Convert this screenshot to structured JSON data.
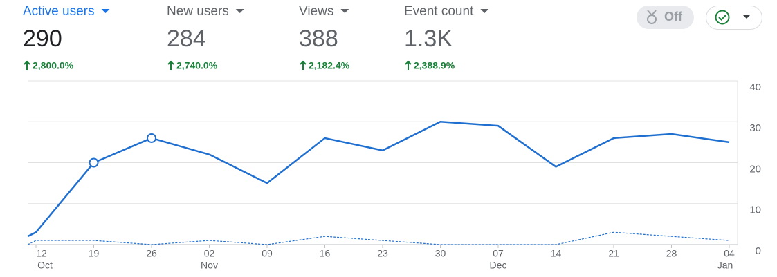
{
  "metrics": [
    {
      "name": "Active users",
      "value": "290",
      "change": "2,800.0%"
    },
    {
      "name": "New users",
      "value": "284",
      "change": "2,740.0%"
    },
    {
      "name": "Views",
      "value": "388",
      "change": "2,182.4%"
    },
    {
      "name": "Event count",
      "value": "1.3K",
      "change": "2,388.9%"
    }
  ],
  "toggle": "Off",
  "chart_data": {
    "type": "line",
    "categories": [
      null,
      "12",
      "19",
      "26",
      "02",
      "09",
      "16",
      "23",
      "30",
      "07",
      "14",
      "21",
      "28",
      "04"
    ],
    "x_sublabels": [
      null,
      "Oct",
      null,
      null,
      "Nov",
      null,
      null,
      null,
      null,
      "Dec",
      null,
      null,
      null,
      "Jan"
    ],
    "series": [
      {
        "color": "#1f6fd1",
        "values": [
          2,
          3,
          20,
          26,
          22,
          15,
          26,
          23,
          30,
          29,
          19,
          26,
          27,
          25
        ]
      },
      {
        "color": "#1f6fd1",
        "dashed": true,
        "values": [
          0,
          1,
          1,
          0,
          1,
          0,
          2,
          1,
          0,
          0,
          0,
          3,
          2,
          1
        ]
      }
    ],
    "ylim": [
      0,
      40
    ],
    "yticks": [
      0,
      10,
      20,
      30,
      40
    ],
    "grid": true
  }
}
